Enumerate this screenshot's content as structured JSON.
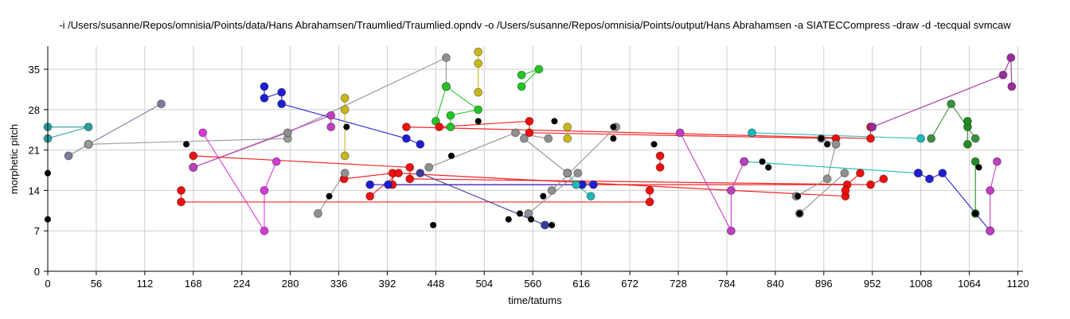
{
  "title": "-i /Users/susanne/Repos/omnisia/Points/data/Hans Abrahamsen/Traumlied/Traumlied.opndv -o /Users/susanne/Repos/omnisia/Points/output/Hans Abrahamsen -a SIATECCompress -draw -d -tecqual svmcaw",
  "chart_data": {
    "type": "scatter",
    "title": "-i /Users/susanne/Repos/omnisia/Points/data/Hans Abrahamsen/Traumlied/Traumlied.opndv -o /Users/susanne/Repos/omnisia/Points/output/Hans Abrahamsen -a SIATECCompress -draw -d -tecqual svmcaw",
    "xlabel": "time/tatums",
    "ylabel": "morphetic pitch",
    "xlim": [
      0,
      1126
    ],
    "ylim": [
      0,
      39
    ],
    "xticks": [
      0,
      56,
      112,
      168,
      224,
      280,
      336,
      392,
      448,
      504,
      560,
      616,
      672,
      728,
      784,
      840,
      896,
      952,
      1008,
      1064,
      1120
    ],
    "yticks": [
      0,
      7,
      14,
      21,
      28,
      35
    ],
    "grid": true,
    "legend": "none",
    "points": [
      {
        "x": 0,
        "y": 17
      },
      {
        "x": 0,
        "y": 9
      },
      {
        "x": 160,
        "y": 22
      },
      {
        "x": 345,
        "y": 25
      },
      {
        "x": 325,
        "y": 13
      },
      {
        "x": 445,
        "y": 8
      },
      {
        "x": 466,
        "y": 20
      },
      {
        "x": 497,
        "y": 26
      },
      {
        "x": 532,
        "y": 9
      },
      {
        "x": 545,
        "y": 10
      },
      {
        "x": 558,
        "y": 9
      },
      {
        "x": 582,
        "y": 8
      },
      {
        "x": 572,
        "y": 13
      },
      {
        "x": 585,
        "y": 26
      },
      {
        "x": 653,
        "y": 25
      },
      {
        "x": 653,
        "y": 23
      },
      {
        "x": 700,
        "y": 22
      },
      {
        "x": 825,
        "y": 19
      },
      {
        "x": 832,
        "y": 18
      },
      {
        "x": 868,
        "y": 10
      },
      {
        "x": 866,
        "y": 13
      },
      {
        "x": 893,
        "y": 23
      },
      {
        "x": 900,
        "y": 22
      },
      {
        "x": 1075,
        "y": 18
      },
      {
        "x": 1071,
        "y": 10
      }
    ],
    "series": [
      {
        "color": "#2a9d9d",
        "points": [
          [
            0,
            25
          ],
          [
            47,
            25
          ],
          [
            0,
            23
          ]
        ]
      },
      {
        "color": "#7b7b9b",
        "points": [
          [
            24,
            20
          ],
          [
            47,
            22
          ],
          [
            131,
            29
          ]
        ]
      },
      {
        "color": "#9a9a9a",
        "points": [
          [
            47,
            22
          ],
          [
            277,
            23
          ]
        ]
      },
      {
        "color": "#8f8f8f",
        "points": [
          [
            168,
            18
          ],
          [
            277,
            24
          ],
          [
            460,
            37
          ],
          [
            460,
            32
          ]
        ]
      },
      {
        "color": "#c13dc1",
        "points": [
          [
            168,
            18
          ],
          [
            327,
            27
          ],
          [
            327,
            25
          ]
        ]
      },
      {
        "color": "#d638d6",
        "points": [
          [
            179,
            24
          ],
          [
            250,
            7
          ],
          [
            250,
            14
          ],
          [
            264,
            19
          ]
        ]
      },
      {
        "color": "#1e1ed0",
        "points": [
          [
            250,
            32
          ],
          [
            250,
            30
          ],
          [
            270,
            31
          ],
          [
            270,
            29
          ],
          [
            414,
            23
          ],
          [
            430,
            22
          ]
        ]
      },
      {
        "color": "#c9b81a",
        "points": [
          [
            343,
            30
          ],
          [
            343,
            28
          ],
          [
            343,
            20
          ]
        ]
      },
      {
        "color": "#c9b81a",
        "points": [
          [
            497,
            38
          ],
          [
            497,
            36
          ],
          [
            497,
            31
          ]
        ]
      },
      {
        "color": "#22c522",
        "points": [
          [
            448,
            26
          ],
          [
            460,
            32
          ],
          [
            497,
            28
          ],
          [
            465,
            27
          ],
          [
            465,
            25
          ]
        ]
      },
      {
        "color": "#22c522",
        "points": [
          [
            547,
            34
          ],
          [
            567,
            35
          ],
          [
            547,
            32
          ]
        ]
      },
      {
        "color": "#ef1010",
        "points": [
          [
            154,
            14
          ],
          [
            154,
            12
          ],
          [
            695,
            12
          ],
          [
            695,
            14
          ]
        ]
      },
      {
        "color": "#ef1010",
        "points": [
          [
            168,
            20
          ],
          [
            418,
            18
          ],
          [
            418,
            16
          ],
          [
            950,
            15
          ],
          [
            965,
            16
          ]
        ]
      },
      {
        "color": "#ef1010",
        "points": [
          [
            414,
            25
          ],
          [
            950,
            23
          ],
          [
            950,
            25
          ]
        ]
      },
      {
        "color": "#ef1010",
        "points": [
          [
            342,
            16
          ],
          [
            398,
            17
          ],
          [
            398,
            15
          ],
          [
            923,
            15
          ],
          [
            938,
            17
          ]
        ]
      },
      {
        "color": "#ef1010",
        "points": [
          [
            372,
            13
          ],
          [
            405,
            17
          ],
          [
            921,
            13
          ],
          [
            921,
            14
          ]
        ]
      },
      {
        "color": "#ef1010",
        "points": [
          [
            452,
            25
          ],
          [
            556,
            26
          ],
          [
            556,
            24
          ],
          [
            910,
            23
          ]
        ]
      },
      {
        "color": "#ef1010",
        "points": [
          [
            707,
            20
          ],
          [
            707,
            18
          ]
        ]
      },
      {
        "color": "#3a3a9a",
        "points": [
          [
            430,
            17
          ],
          [
            574,
            8
          ]
        ]
      },
      {
        "color": "#1e1ed0",
        "points": [
          [
            372,
            15
          ],
          [
            393,
            15
          ],
          [
            617,
            15
          ],
          [
            630,
            15
          ]
        ]
      },
      {
        "color": "#20b8b8",
        "points": [
          [
            600,
            17
          ],
          [
            610,
            15
          ],
          [
            627,
            13
          ]
        ]
      },
      {
        "color": "#20b8b8",
        "points": [
          [
            813,
            24
          ],
          [
            1008,
            23
          ]
        ]
      },
      {
        "color": "#20b8b8",
        "points": [
          [
            804,
            19
          ],
          [
            1005,
            17
          ]
        ]
      },
      {
        "color": "#1e1ed0",
        "points": [
          [
            1005,
            17
          ],
          [
            1018,
            16
          ],
          [
            1033,
            17
          ],
          [
            1088,
            7
          ]
        ]
      },
      {
        "color": "#3c8f3c",
        "points": [
          [
            1020,
            23
          ],
          [
            1043,
            29
          ],
          [
            1071,
            23
          ]
        ]
      },
      {
        "color": "#9b2b9b",
        "points": [
          [
            952,
            25
          ],
          [
            1103,
            34
          ],
          [
            1112,
            37
          ],
          [
            1113,
            32
          ]
        ]
      },
      {
        "color": "#c13dc1",
        "points": [
          [
            730,
            24
          ],
          [
            789,
            7
          ],
          [
            789,
            14
          ],
          [
            804,
            19
          ]
        ]
      },
      {
        "color": "#c13dc1",
        "points": [
          [
            1088,
            7
          ],
          [
            1088,
            14
          ],
          [
            1096,
            19
          ]
        ]
      },
      {
        "color": "#909090",
        "points": [
          [
            550,
            23
          ],
          [
            600,
            17
          ]
        ]
      },
      {
        "color": "#909090",
        "points": [
          [
            555,
            10
          ],
          [
            612,
            17
          ]
        ]
      },
      {
        "color": "#909090",
        "points": [
          [
            312,
            10
          ],
          [
            343,
            17
          ]
        ]
      },
      {
        "color": "#909090",
        "points": [
          [
            868,
            10
          ],
          [
            920,
            17
          ]
        ]
      },
      {
        "color": "#909090",
        "points": [
          [
            440,
            18
          ],
          [
            540,
            24
          ],
          [
            578,
            23
          ]
        ]
      },
      {
        "color": "#909090",
        "points": [
          [
            656,
            25
          ],
          [
            582,
            14
          ]
        ]
      },
      {
        "color": "#c9b81a",
        "points": [
          [
            600,
            25
          ],
          [
            600,
            23
          ]
        ]
      },
      {
        "color": "#909090",
        "points": [
          [
            864,
            13
          ],
          [
            900,
            16
          ],
          [
            910,
            22
          ],
          [
            893,
            23
          ]
        ]
      },
      {
        "color": "#228a22",
        "points": [
          [
            1062,
            22
          ],
          [
            1062,
            25
          ],
          [
            1062,
            26
          ]
        ]
      },
      {
        "color": "#228a22",
        "points": [
          [
            1071,
            19
          ],
          [
            1071,
            10
          ]
        ]
      }
    ]
  }
}
